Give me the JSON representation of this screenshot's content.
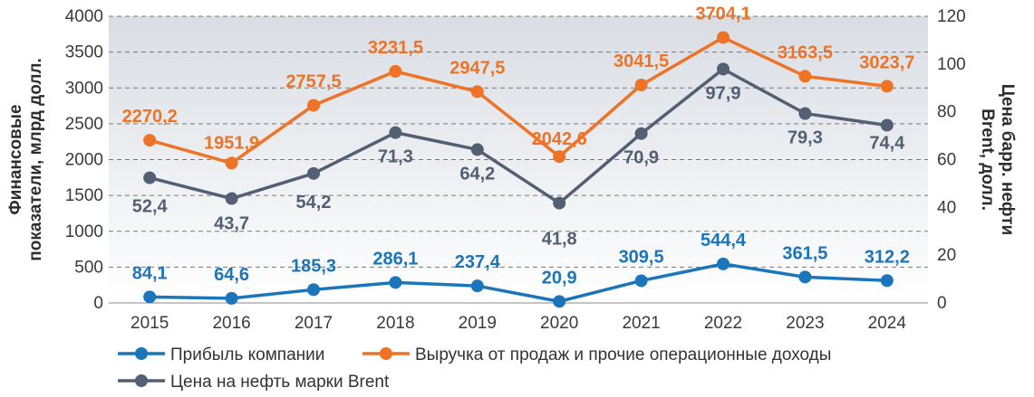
{
  "chart_data": {
    "type": "line",
    "categories": [
      "2015",
      "2016",
      "2017",
      "2018",
      "2019",
      "2020",
      "2021",
      "2022",
      "2023",
      "2024"
    ],
    "ylabel": "Финансовые показатели, млрд долл.",
    "y2label": "Цена барр. нефти Brent, долл.",
    "ylim": [
      0,
      4000
    ],
    "y2lim": [
      0,
      120
    ],
    "yticks": [
      "0",
      "500",
      "1000",
      "1500",
      "2000",
      "2500",
      "3000",
      "3500",
      "4000"
    ],
    "y2ticks": [
      "0",
      "20",
      "40",
      "60",
      "80",
      "100",
      "120"
    ],
    "grid": true,
    "legend_position": "bottom",
    "series": [
      {
        "name": "Прибыль компании",
        "axis": "left",
        "color": "#1b75bb",
        "values": [
          84.1,
          64.6,
          185.3,
          286.1,
          237.4,
          20.9,
          309.5,
          544.4,
          361.5,
          312.2
        ],
        "labels": [
          "84,1",
          "64,6",
          "185,3",
          "286,1",
          "237,4",
          "20,9",
          "309,5",
          "544,4",
          "361,5",
          "312,2"
        ]
      },
      {
        "name": "Выручка от продаж и прочие операционные доходы",
        "axis": "left",
        "color": "#ee7326",
        "values": [
          2270.2,
          1951.9,
          2757.5,
          3231.5,
          2947.5,
          2042.6,
          3041.5,
          3704.1,
          3163.5,
          3023.7
        ],
        "labels": [
          "2270,2",
          "1951,9",
          "2757,5",
          "3231,5",
          "2947,5",
          "2042,6",
          "3041,5",
          "3704,1",
          "3163,5",
          "3023,7"
        ]
      },
      {
        "name": "Цена на нефть марки Brent",
        "axis": "right",
        "color": "#535f73",
        "values": [
          52.4,
          43.7,
          54.2,
          71.3,
          64.2,
          41.8,
          70.9,
          97.9,
          79.3,
          74.4
        ],
        "labels": [
          "52,4",
          "43,7",
          "54,2",
          "71,3",
          "64,2",
          "41,8",
          "70,9",
          "97,9",
          "79,3",
          "74,4"
        ]
      }
    ]
  }
}
